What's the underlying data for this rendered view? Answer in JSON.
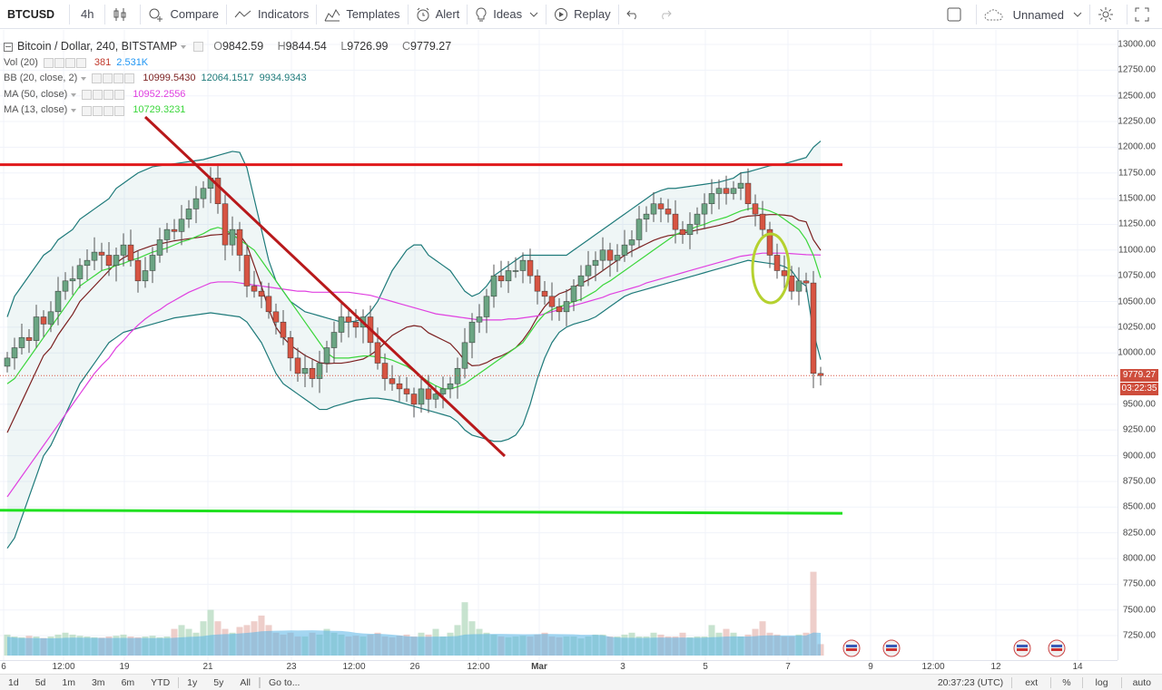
{
  "toolbar": {
    "symbol": "BTCUSD",
    "interval": "4h",
    "compare": "Compare",
    "indicators": "Indicators",
    "templates": "Templates",
    "alert": "Alert",
    "ideas": "Ideas",
    "replay": "Replay",
    "layout_name": "Unnamed"
  },
  "legend": {
    "title": "Bitcoin / Dollar, 240, BITSTAMP",
    "open": "9842.59",
    "high": "9844.54",
    "low": "9726.99",
    "close": "9779.27",
    "o_label": "O",
    "h_label": "H",
    "l_label": "L",
    "c_label": "C",
    "vol": {
      "name": "Vol (20)",
      "v1": "381",
      "v2": "2.531K",
      "c2": "#2196f3"
    },
    "bb": {
      "name": "BB (20, close, 2)",
      "v1": "10999.5430",
      "v2": "12064.1517",
      "v3": "9934.9343",
      "c1": "#7b1f1f",
      "c2": "#1e7a7a",
      "c3": "#1e7a7a"
    },
    "ma50": {
      "name": "MA (50, close)",
      "v1": "10952.2556",
      "color": "#e040e0"
    },
    "ma13": {
      "name": "MA (13, close)",
      "v1": "10729.3231",
      "color": "#3bd63b"
    }
  },
  "price_axis": {
    "labels": [
      "13000.00",
      "12750.00",
      "12500.00",
      "12250.00",
      "12000.00",
      "11750.00",
      "11500.00",
      "11250.00",
      "11000.00",
      "10750.00",
      "10500.00",
      "10250.00",
      "10000.00",
      "9750.00",
      "9500.00",
      "9250.00",
      "9000.00",
      "8750.00",
      "8500.00",
      "8250.00",
      "8000.00",
      "7750.00",
      "7500.00",
      "7250.00"
    ],
    "last_price": "9779.27",
    "countdown": "03:22:35"
  },
  "time_axis": {
    "labels": [
      "6",
      "12:00",
      "19",
      "21",
      "23",
      "12:00",
      "26",
      "12:00",
      "Mar",
      "3",
      "5",
      "7",
      "9",
      "12:00",
      "12",
      "14"
    ]
  },
  "bottombar": {
    "ranges": [
      "1d",
      "5d",
      "1m",
      "3m",
      "6m",
      "YTD",
      "1y",
      "5y",
      "All"
    ],
    "goto": "Go to...",
    "clock": "20:37:23 (UTC)",
    "ext": "ext",
    "pct": "%",
    "log": "log",
    "auto": "auto"
  },
  "chart_data": {
    "type": "candlestick",
    "title": "Bitcoin / Dollar, 240, BITSTAMP",
    "ylim": [
      7100,
      13100
    ],
    "colors": {
      "up": "#6ba583",
      "down": "#d75442",
      "bb_basis": "#7b1f1f",
      "bb_band": "#1e7a7a",
      "ma50": "#e040e0",
      "ma13": "#3bd63b",
      "resistance": "#e0191b",
      "trendline": "#b8191b",
      "support": "#1fe01f",
      "ellipse": "#b5d12f"
    },
    "candles_close": [
      9950,
      10050,
      10150,
      10120,
      10350,
      10280,
      10400,
      10600,
      10700,
      10720,
      10850,
      10900,
      10980,
      10950,
      10850,
      10950,
      11050,
      10900,
      10700,
      10800,
      10950,
      11100,
      11200,
      11180,
      11300,
      11400,
      11500,
      11600,
      11700,
      11450,
      11050,
      11200,
      10950,
      10650,
      10600,
      10550,
      10400,
      10300,
      10150,
      9950,
      9800,
      9850,
      9750,
      9900,
      10050,
      10200,
      10350,
      10300,
      10250,
      10350,
      10100,
      9900,
      9750,
      9700,
      9650,
      9600,
      9500,
      9650,
      9550,
      9600,
      9650,
      9700,
      9850,
      10100,
      10300,
      10350,
      10550,
      10750,
      10700,
      10800,
      10800,
      10900,
      10750,
      10600,
      10550,
      10450,
      10400,
      10500,
      10650,
      10750,
      10850,
      10900,
      11000,
      10900,
      10950,
      11050,
      11100,
      11300,
      11350,
      11450,
      11400,
      11350,
      11200,
      11150,
      11250,
      11350,
      11450,
      11550,
      11600,
      11550,
      11600,
      11650,
      11450,
      11350,
      11200,
      10950,
      10800,
      10750,
      10600,
      10700,
      10680,
      9800,
      9779
    ],
    "bb_upper": [
      10350,
      10550,
      10650,
      10750,
      10850,
      10950,
      11000,
      11100,
      11150,
      11200,
      11300,
      11350,
      11400,
      11450,
      11500,
      11600,
      11650,
      11700,
      11750,
      11780,
      11810,
      11820,
      11830,
      11840,
      11850,
      11860,
      11870,
      11880,
      11900,
      11920,
      11940,
      11960,
      11950,
      11800,
      11500,
      11200,
      10900,
      10700,
      10600,
      10500,
      10450,
      10400,
      10380,
      10360,
      10340,
      10320,
      10300,
      10300,
      10310,
      10330,
      10400,
      10500,
      10650,
      10800,
      10900,
      11000,
      11050,
      11050,
      10950,
      10900,
      10850,
      10800,
      10700,
      10600,
      10550,
      10580,
      10650,
      10750,
      10800,
      10850,
      10900,
      10950,
      10950,
      10950,
      10950,
      10950,
      10950,
      10950,
      11000,
      11050,
      11100,
      11150,
      11200,
      11250,
      11300,
      11350,
      11400,
      11450,
      11500,
      11550,
      11580,
      11600,
      11600,
      11610,
      11620,
      11630,
      11640,
      11650,
      11660,
      11680,
      11700,
      11750,
      11760,
      11780,
      11800,
      11820,
      11830,
      11840,
      11860,
      11880,
      11900,
      12000,
      12060
    ],
    "bb_lower": [
      8100,
      8200,
      8400,
      8600,
      8800,
      9000,
      9100,
      9250,
      9400,
      9550,
      9700,
      9800,
      9900,
      10000,
      10100,
      10150,
      10200,
      10220,
      10240,
      10260,
      10280,
      10300,
      10320,
      10340,
      10350,
      10360,
      10370,
      10380,
      10390,
      10380,
      10370,
      10360,
      10350,
      10300,
      10200,
      10100,
      9950,
      9800,
      9700,
      9650,
      9600,
      9550,
      9500,
      9450,
      9450,
      9480,
      9500,
      9520,
      9540,
      9550,
      9560,
      9560,
      9550,
      9540,
      9520,
      9500,
      9480,
      9460,
      9440,
      9420,
      9400,
      9380,
      9330,
      9250,
      9200,
      9180,
      9160,
      9140,
      9140,
      9160,
      9200,
      9300,
      9500,
      9750,
      9950,
      10100,
      10200,
      10250,
      10280,
      10300,
      10320,
      10350,
      10400,
      10450,
      10500,
      10550,
      10580,
      10600,
      10620,
      10640,
      10660,
      10680,
      10700,
      10720,
      10740,
      10760,
      10780,
      10800,
      10820,
      10840,
      10860,
      10880,
      10900,
      10890,
      10880,
      10870,
      10860,
      10840,
      10800,
      10700,
      10650,
      10200,
      9934
    ],
    "ma13": [
      9700,
      9750,
      9850,
      9950,
      10050,
      10150,
      10250,
      10350,
      10450,
      10550,
      10650,
      10700,
      10750,
      10800,
      10820,
      10850,
      10870,
      10900,
      10920,
      10950,
      10980,
      11000,
      11020,
      11050,
      11080,
      11100,
      11130,
      11160,
      11200,
      11220,
      11200,
      11150,
      11100,
      11050,
      11000,
      10900,
      10800,
      10700,
      10600,
      10500,
      10400,
      10300,
      10200,
      10100,
      10000,
      9950,
      9950,
      9950,
      9960,
      9970,
      9970,
      9960,
      9950,
      9930,
      9900,
      9870,
      9820,
      9770,
      9720,
      9680,
      9650,
      9650,
      9670,
      9700,
      9750,
      9800,
      9850,
      9900,
      9950,
      10000,
      10050,
      10100,
      10200,
      10300,
      10380,
      10420,
      10450,
      10470,
      10500,
      10520,
      10560,
      10600,
      10660,
      10700,
      10750,
      10800,
      10850,
      10900,
      10950,
      11000,
      11050,
      11100,
      11150,
      11180,
      11200,
      11230,
      11250,
      11280,
      11300,
      11320,
      11350,
      11380,
      11400,
      11410,
      11400,
      11380,
      11350,
      11300,
      11250,
      11200,
      11100,
      10950,
      10730
    ],
    "ma50": [
      8600,
      8700,
      8800,
      8900,
      9000,
      9100,
      9200,
      9300,
      9400,
      9500,
      9600,
      9700,
      9800,
      9880,
      9950,
      10050,
      10120,
      10200,
      10270,
      10330,
      10380,
      10420,
      10470,
      10510,
      10550,
      10590,
      10620,
      10650,
      10680,
      10690,
      10690,
      10690,
      10680,
      10670,
      10660,
      10650,
      10640,
      10630,
      10620,
      10610,
      10600,
      10600,
      10590,
      10590,
      10590,
      10590,
      10590,
      10590,
      10580,
      10570,
      10560,
      10540,
      10520,
      10500,
      10480,
      10460,
      10440,
      10420,
      10400,
      10380,
      10370,
      10360,
      10350,
      10340,
      10330,
      10320,
      10320,
      10320,
      10320,
      10330,
      10330,
      10340,
      10350,
      10360,
      10380,
      10400,
      10420,
      10440,
      10460,
      10480,
      10500,
      10520,
      10540,
      10570,
      10590,
      10610,
      10630,
      10650,
      10680,
      10700,
      10720,
      10740,
      10760,
      10780,
      10800,
      10820,
      10840,
      10860,
      10880,
      10900,
      10920,
      10940,
      10950,
      10960,
      10970,
      10970,
      10970,
      10970,
      10965,
      10960,
      10955,
      10953,
      10952
    ],
    "volume": [
      0.55,
      0.5,
      0.48,
      0.52,
      0.5,
      0.46,
      0.5,
      0.55,
      0.6,
      0.55,
      0.52,
      0.5,
      0.48,
      0.47,
      0.5,
      0.52,
      0.55,
      0.5,
      0.48,
      0.5,
      0.52,
      0.48,
      0.5,
      0.7,
      0.8,
      0.7,
      0.6,
      0.9,
      1.2,
      0.9,
      0.7,
      0.6,
      0.75,
      0.8,
      0.9,
      1.05,
      0.8,
      0.6,
      0.55,
      0.6,
      0.5,
      0.5,
      0.6,
      0.55,
      0.7,
      0.6,
      0.55,
      0.5,
      0.52,
      0.5,
      0.55,
      0.6,
      0.5,
      0.48,
      0.52,
      0.55,
      0.5,
      0.6,
      0.55,
      0.7,
      0.5,
      0.6,
      0.8,
      1.4,
      0.9,
      0.7,
      0.6,
      0.55,
      0.5,
      0.48,
      0.5,
      0.52,
      0.5,
      0.55,
      0.6,
      0.5,
      0.48,
      0.5,
      0.5,
      0.45,
      0.5,
      0.55,
      0.55,
      0.5,
      0.5,
      0.55,
      0.6,
      0.5,
      0.5,
      0.6,
      0.55,
      0.5,
      0.5,
      0.6,
      0.48,
      0.5,
      0.5,
      0.8,
      0.6,
      0.7,
      0.6,
      0.5,
      0.55,
      0.7,
      0.9,
      0.6,
      0.55,
      0.5,
      0.5,
      0.55,
      0.6,
      2.2,
      0.3
    ]
  }
}
